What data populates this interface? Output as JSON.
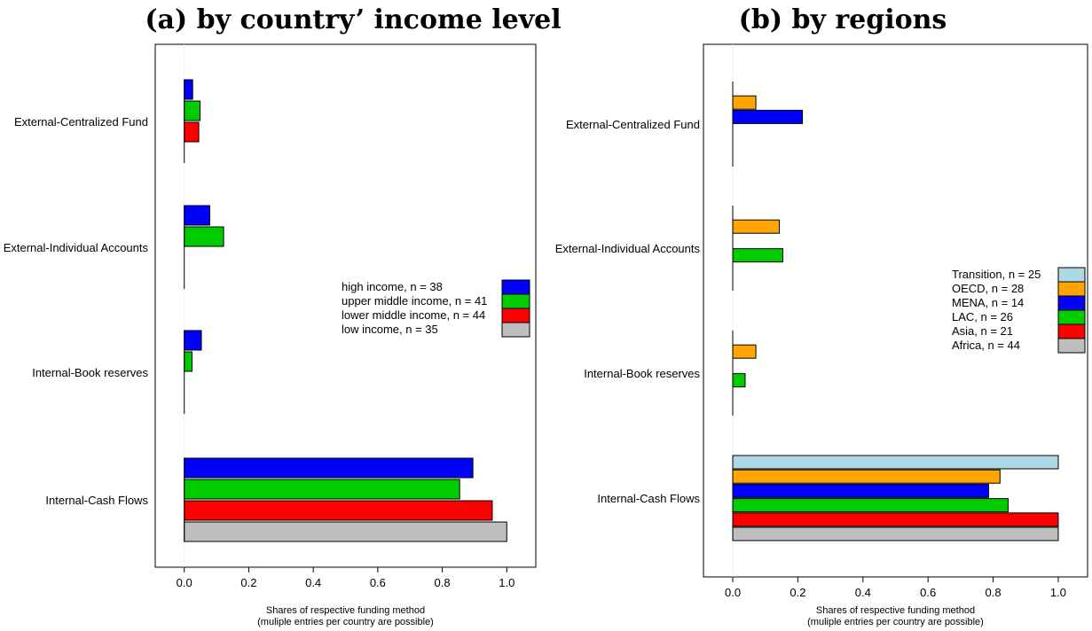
{
  "chart_data": [
    {
      "type": "bar",
      "orientation": "horizontal",
      "title": "(a) by country’ income level",
      "xlabel": "Shares of respective funding method",
      "xlabel_note": "(muliple entries per country are possible)",
      "xlim": [
        -0.09,
        1.09
      ],
      "xticks": [
        "0.0",
        "0.2",
        "0.4",
        "0.6",
        "0.8",
        "1.0"
      ],
      "categories": [
        "External-Centralized Fund",
        "External-Individual Accounts",
        "Internal-Book reserves",
        "Internal-Cash Flows"
      ],
      "series": [
        {
          "name": "high income, n = 38",
          "color": "#0000ff",
          "values": [
            0.026,
            0.079,
            0.053,
            0.895
          ]
        },
        {
          "name": "upper middle income, n = 41",
          "color": "#00cc00",
          "values": [
            0.049,
            0.122,
            0.024,
            0.854
          ]
        },
        {
          "name": "lower middle income, n = 44",
          "color": "#ff0000",
          "values": [
            0.045,
            0.0,
            0.0,
            0.955
          ]
        },
        {
          "name": "low income, n = 35",
          "color": "#bebebe",
          "values": [
            0.0,
            0.0,
            0.0,
            1.0
          ]
        }
      ],
      "legend_position": "right"
    },
    {
      "type": "bar",
      "orientation": "horizontal",
      "title": "(b) by regions",
      "xlabel": "Shares of respective funding method",
      "xlabel_note": "(muliple entries per country are possible)",
      "xlim": [
        -0.09,
        1.09
      ],
      "xticks": [
        "0.0",
        "0.2",
        "0.4",
        "0.6",
        "0.8",
        "1.0"
      ],
      "categories": [
        "External-Centralized Fund",
        "External-Individual Accounts",
        "Internal-Book reserves",
        "Internal-Cash Flows"
      ],
      "series": [
        {
          "name": "Transition, n = 25",
          "color": "#add8e6",
          "values": [
            0.0,
            0.0,
            0.0,
            1.0
          ]
        },
        {
          "name": "OECD, n = 28",
          "color": "#ffa500",
          "values": [
            0.071,
            0.143,
            0.071,
            0.821
          ]
        },
        {
          "name": "MENA, n = 14",
          "color": "#0000ff",
          "values": [
            0.214,
            0.0,
            0.0,
            0.786
          ]
        },
        {
          "name": "LAC, n = 26",
          "color": "#00cc00",
          "values": [
            0.0,
            0.154,
            0.038,
            0.846
          ]
        },
        {
          "name": "Asia, n = 21",
          "color": "#ff0000",
          "values": [
            0.0,
            0.0,
            0.0,
            1.0
          ]
        },
        {
          "name": "Africa, n = 44",
          "color": "#bebebe",
          "values": [
            0.0,
            0.0,
            0.0,
            1.0
          ]
        }
      ],
      "legend_position": "right"
    }
  ]
}
